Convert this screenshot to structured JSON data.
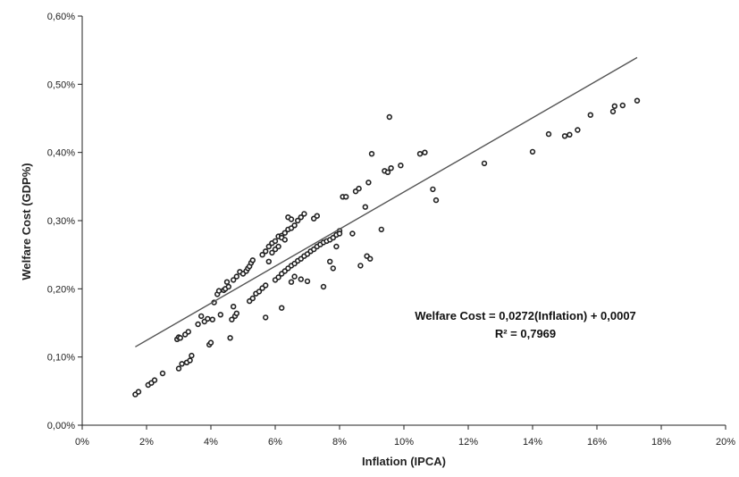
{
  "chart_data": {
    "type": "scatter",
    "title": "",
    "xlabel": "Inflation (IPCA)",
    "ylabel": "Welfare Cost (GDP%)",
    "xlim": [
      0,
      0.2
    ],
    "ylim": [
      0,
      0.006
    ],
    "x_ticks": [
      "0%",
      "2%",
      "4%",
      "6%",
      "8%",
      "10%",
      "12%",
      "14%",
      "16%",
      "18%",
      "20%"
    ],
    "y_ticks": [
      "0,00%",
      "0,10%",
      "0,20%",
      "0,30%",
      "0,40%",
      "0,50%",
      "0,60%"
    ],
    "grid": false,
    "trendline": {
      "slope": 0.0272,
      "intercept": 0.0007,
      "x_range": [
        0.0165,
        0.1725
      ]
    },
    "annotations": [
      "Welfare Cost = 0,0272(Inflation) + 0,0007",
      "R² = 0,7969"
    ],
    "points": [
      [
        0.0165,
        0.00045
      ],
      [
        0.0175,
        0.00049
      ],
      [
        0.0205,
        0.00059
      ],
      [
        0.0215,
        0.00062
      ],
      [
        0.0225,
        0.00066
      ],
      [
        0.025,
        0.00076
      ],
      [
        0.03,
        0.00083
      ],
      [
        0.031,
        0.0009
      ],
      [
        0.0325,
        0.00092
      ],
      [
        0.0335,
        0.00095
      ],
      [
        0.034,
        0.00102
      ],
      [
        0.0295,
        0.00126
      ],
      [
        0.03,
        0.00129
      ],
      [
        0.0305,
        0.00128
      ],
      [
        0.032,
        0.00133
      ],
      [
        0.033,
        0.00137
      ],
      [
        0.036,
        0.00148
      ],
      [
        0.037,
        0.0016
      ],
      [
        0.038,
        0.00152
      ],
      [
        0.039,
        0.00156
      ],
      [
        0.0395,
        0.00118
      ],
      [
        0.04,
        0.00121
      ],
      [
        0.0405,
        0.00155
      ],
      [
        0.041,
        0.0018
      ],
      [
        0.042,
        0.00192
      ],
      [
        0.0425,
        0.00197
      ],
      [
        0.043,
        0.00162
      ],
      [
        0.044,
        0.00198
      ],
      [
        0.0445,
        0.002
      ],
      [
        0.045,
        0.0021
      ],
      [
        0.0455,
        0.00203
      ],
      [
        0.046,
        0.00128
      ],
      [
        0.0465,
        0.00155
      ],
      [
        0.047,
        0.00174
      ],
      [
        0.0475,
        0.0016
      ],
      [
        0.048,
        0.00164
      ],
      [
        0.047,
        0.00213
      ],
      [
        0.048,
        0.00218
      ],
      [
        0.049,
        0.00225
      ],
      [
        0.05,
        0.00222
      ],
      [
        0.051,
        0.00226
      ],
      [
        0.0515,
        0.0023
      ],
      [
        0.052,
        0.00233
      ],
      [
        0.0525,
        0.00238
      ],
      [
        0.053,
        0.00242
      ],
      [
        0.052,
        0.00182
      ],
      [
        0.053,
        0.00186
      ],
      [
        0.054,
        0.00193
      ],
      [
        0.055,
        0.00196
      ],
      [
        0.056,
        0.00201
      ],
      [
        0.057,
        0.00205
      ],
      [
        0.056,
        0.0025
      ],
      [
        0.057,
        0.00255
      ],
      [
        0.058,
        0.00262
      ],
      [
        0.059,
        0.00267
      ],
      [
        0.06,
        0.0027
      ],
      [
        0.061,
        0.00277
      ],
      [
        0.062,
        0.00278
      ],
      [
        0.063,
        0.00282
      ],
      [
        0.064,
        0.00287
      ],
      [
        0.065,
        0.00289
      ],
      [
        0.066,
        0.00293
      ],
      [
        0.067,
        0.003
      ],
      [
        0.068,
        0.00305
      ],
      [
        0.069,
        0.0031
      ],
      [
        0.064,
        0.00305
      ],
      [
        0.065,
        0.00302
      ],
      [
        0.062,
        0.00275
      ],
      [
        0.063,
        0.00272
      ],
      [
        0.06,
        0.00258
      ],
      [
        0.059,
        0.00253
      ],
      [
        0.061,
        0.00262
      ],
      [
        0.058,
        0.0024
      ],
      [
        0.057,
        0.00158
      ],
      [
        0.06,
        0.00213
      ],
      [
        0.061,
        0.00217
      ],
      [
        0.062,
        0.00222
      ],
      [
        0.063,
        0.00226
      ],
      [
        0.064,
        0.0023
      ],
      [
        0.065,
        0.00234
      ],
      [
        0.066,
        0.00237
      ],
      [
        0.067,
        0.00241
      ],
      [
        0.068,
        0.00244
      ],
      [
        0.069,
        0.00248
      ],
      [
        0.07,
        0.00251
      ],
      [
        0.071,
        0.00255
      ],
      [
        0.072,
        0.00258
      ],
      [
        0.073,
        0.00262
      ],
      [
        0.074,
        0.00265
      ],
      [
        0.075,
        0.00268
      ],
      [
        0.076,
        0.0027
      ],
      [
        0.077,
        0.00272
      ],
      [
        0.078,
        0.00275
      ],
      [
        0.079,
        0.00279
      ],
      [
        0.08,
        0.00285
      ],
      [
        0.062,
        0.00172
      ],
      [
        0.065,
        0.0021
      ],
      [
        0.066,
        0.00218
      ],
      [
        0.068,
        0.00214
      ],
      [
        0.07,
        0.00211
      ],
      [
        0.072,
        0.00303
      ],
      [
        0.073,
        0.00307
      ],
      [
        0.075,
        0.00203
      ],
      [
        0.077,
        0.0024
      ],
      [
        0.078,
        0.0023
      ],
      [
        0.079,
        0.00262
      ],
      [
        0.08,
        0.00281
      ],
      [
        0.081,
        0.00335
      ],
      [
        0.082,
        0.00335
      ],
      [
        0.084,
        0.00281
      ],
      [
        0.085,
        0.00343
      ],
      [
        0.086,
        0.00347
      ],
      [
        0.0865,
        0.00234
      ],
      [
        0.088,
        0.0032
      ],
      [
        0.0885,
        0.00248
      ],
      [
        0.089,
        0.00356
      ],
      [
        0.0895,
        0.00244
      ],
      [
        0.09,
        0.00398
      ],
      [
        0.093,
        0.00287
      ],
      [
        0.094,
        0.00373
      ],
      [
        0.095,
        0.00371
      ],
      [
        0.096,
        0.00377
      ],
      [
        0.0955,
        0.00452
      ],
      [
        0.099,
        0.00381
      ],
      [
        0.105,
        0.00398
      ],
      [
        0.1065,
        0.004
      ],
      [
        0.109,
        0.00346
      ],
      [
        0.11,
        0.0033
      ],
      [
        0.125,
        0.00384
      ],
      [
        0.14,
        0.00401
      ],
      [
        0.145,
        0.00427
      ],
      [
        0.15,
        0.00424
      ],
      [
        0.1515,
        0.00426
      ],
      [
        0.154,
        0.00433
      ],
      [
        0.158,
        0.00455
      ],
      [
        0.165,
        0.0046
      ],
      [
        0.1655,
        0.00468
      ],
      [
        0.168,
        0.00469
      ],
      [
        0.1725,
        0.00476
      ]
    ]
  }
}
